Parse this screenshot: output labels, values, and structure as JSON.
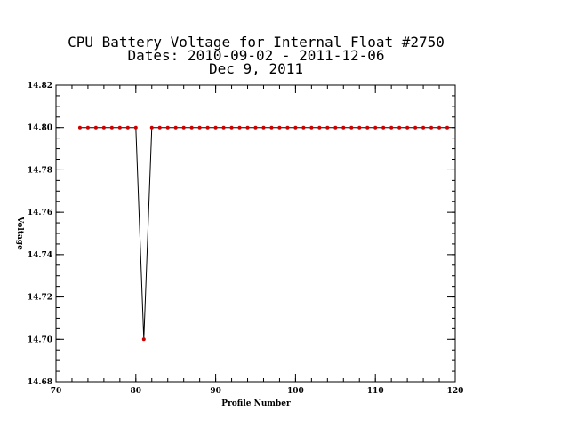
{
  "chart_data": {
    "type": "line",
    "title": [
      "CPU Battery Voltage for Internal Float #2750",
      "Dates:  2010-09-02 -  2011-12-06",
      "Dec  9, 2011"
    ],
    "xlabel": "Profile Number",
    "ylabel": "Voltage",
    "xlim": [
      70,
      120
    ],
    "ylim": [
      14.68,
      14.82
    ],
    "x_ticks": [
      70,
      80,
      90,
      100,
      110,
      120
    ],
    "x_tick_labels": [
      "70",
      "80",
      "90",
      "100",
      "110",
      "120"
    ],
    "y_ticks": [
      14.68,
      14.7,
      14.72,
      14.74,
      14.76,
      14.78,
      14.8,
      14.82
    ],
    "y_tick_labels": [
      "14.68",
      "14.70",
      "14.72",
      "14.74",
      "14.76",
      "14.78",
      "14.80",
      "14.82"
    ],
    "x_minor_step": 2,
    "y_minor_step": 0.005,
    "grid": false,
    "line_color": "#000000",
    "marker_color": "#cc0000",
    "series": [
      {
        "x": [
          73,
          74,
          75,
          76,
          77,
          78,
          79,
          80,
          81,
          82,
          83,
          84,
          85,
          86,
          87,
          88,
          89,
          90,
          91,
          92,
          93,
          94,
          95,
          96,
          97,
          98,
          99,
          100,
          101,
          102,
          103,
          104,
          105,
          106,
          107,
          108,
          109,
          110,
          111,
          112,
          113,
          114,
          115,
          116,
          117,
          118,
          119
        ],
        "values": [
          14.8,
          14.8,
          14.8,
          14.8,
          14.8,
          14.8,
          14.8,
          14.8,
          14.7,
          14.8,
          14.8,
          14.8,
          14.8,
          14.8,
          14.8,
          14.8,
          14.8,
          14.8,
          14.8,
          14.8,
          14.8,
          14.8,
          14.8,
          14.8,
          14.8,
          14.8,
          14.8,
          14.8,
          14.8,
          14.8,
          14.8,
          14.8,
          14.8,
          14.8,
          14.8,
          14.8,
          14.8,
          14.8,
          14.8,
          14.8,
          14.8,
          14.8,
          14.8,
          14.8,
          14.8,
          14.8,
          14.8
        ]
      }
    ]
  }
}
